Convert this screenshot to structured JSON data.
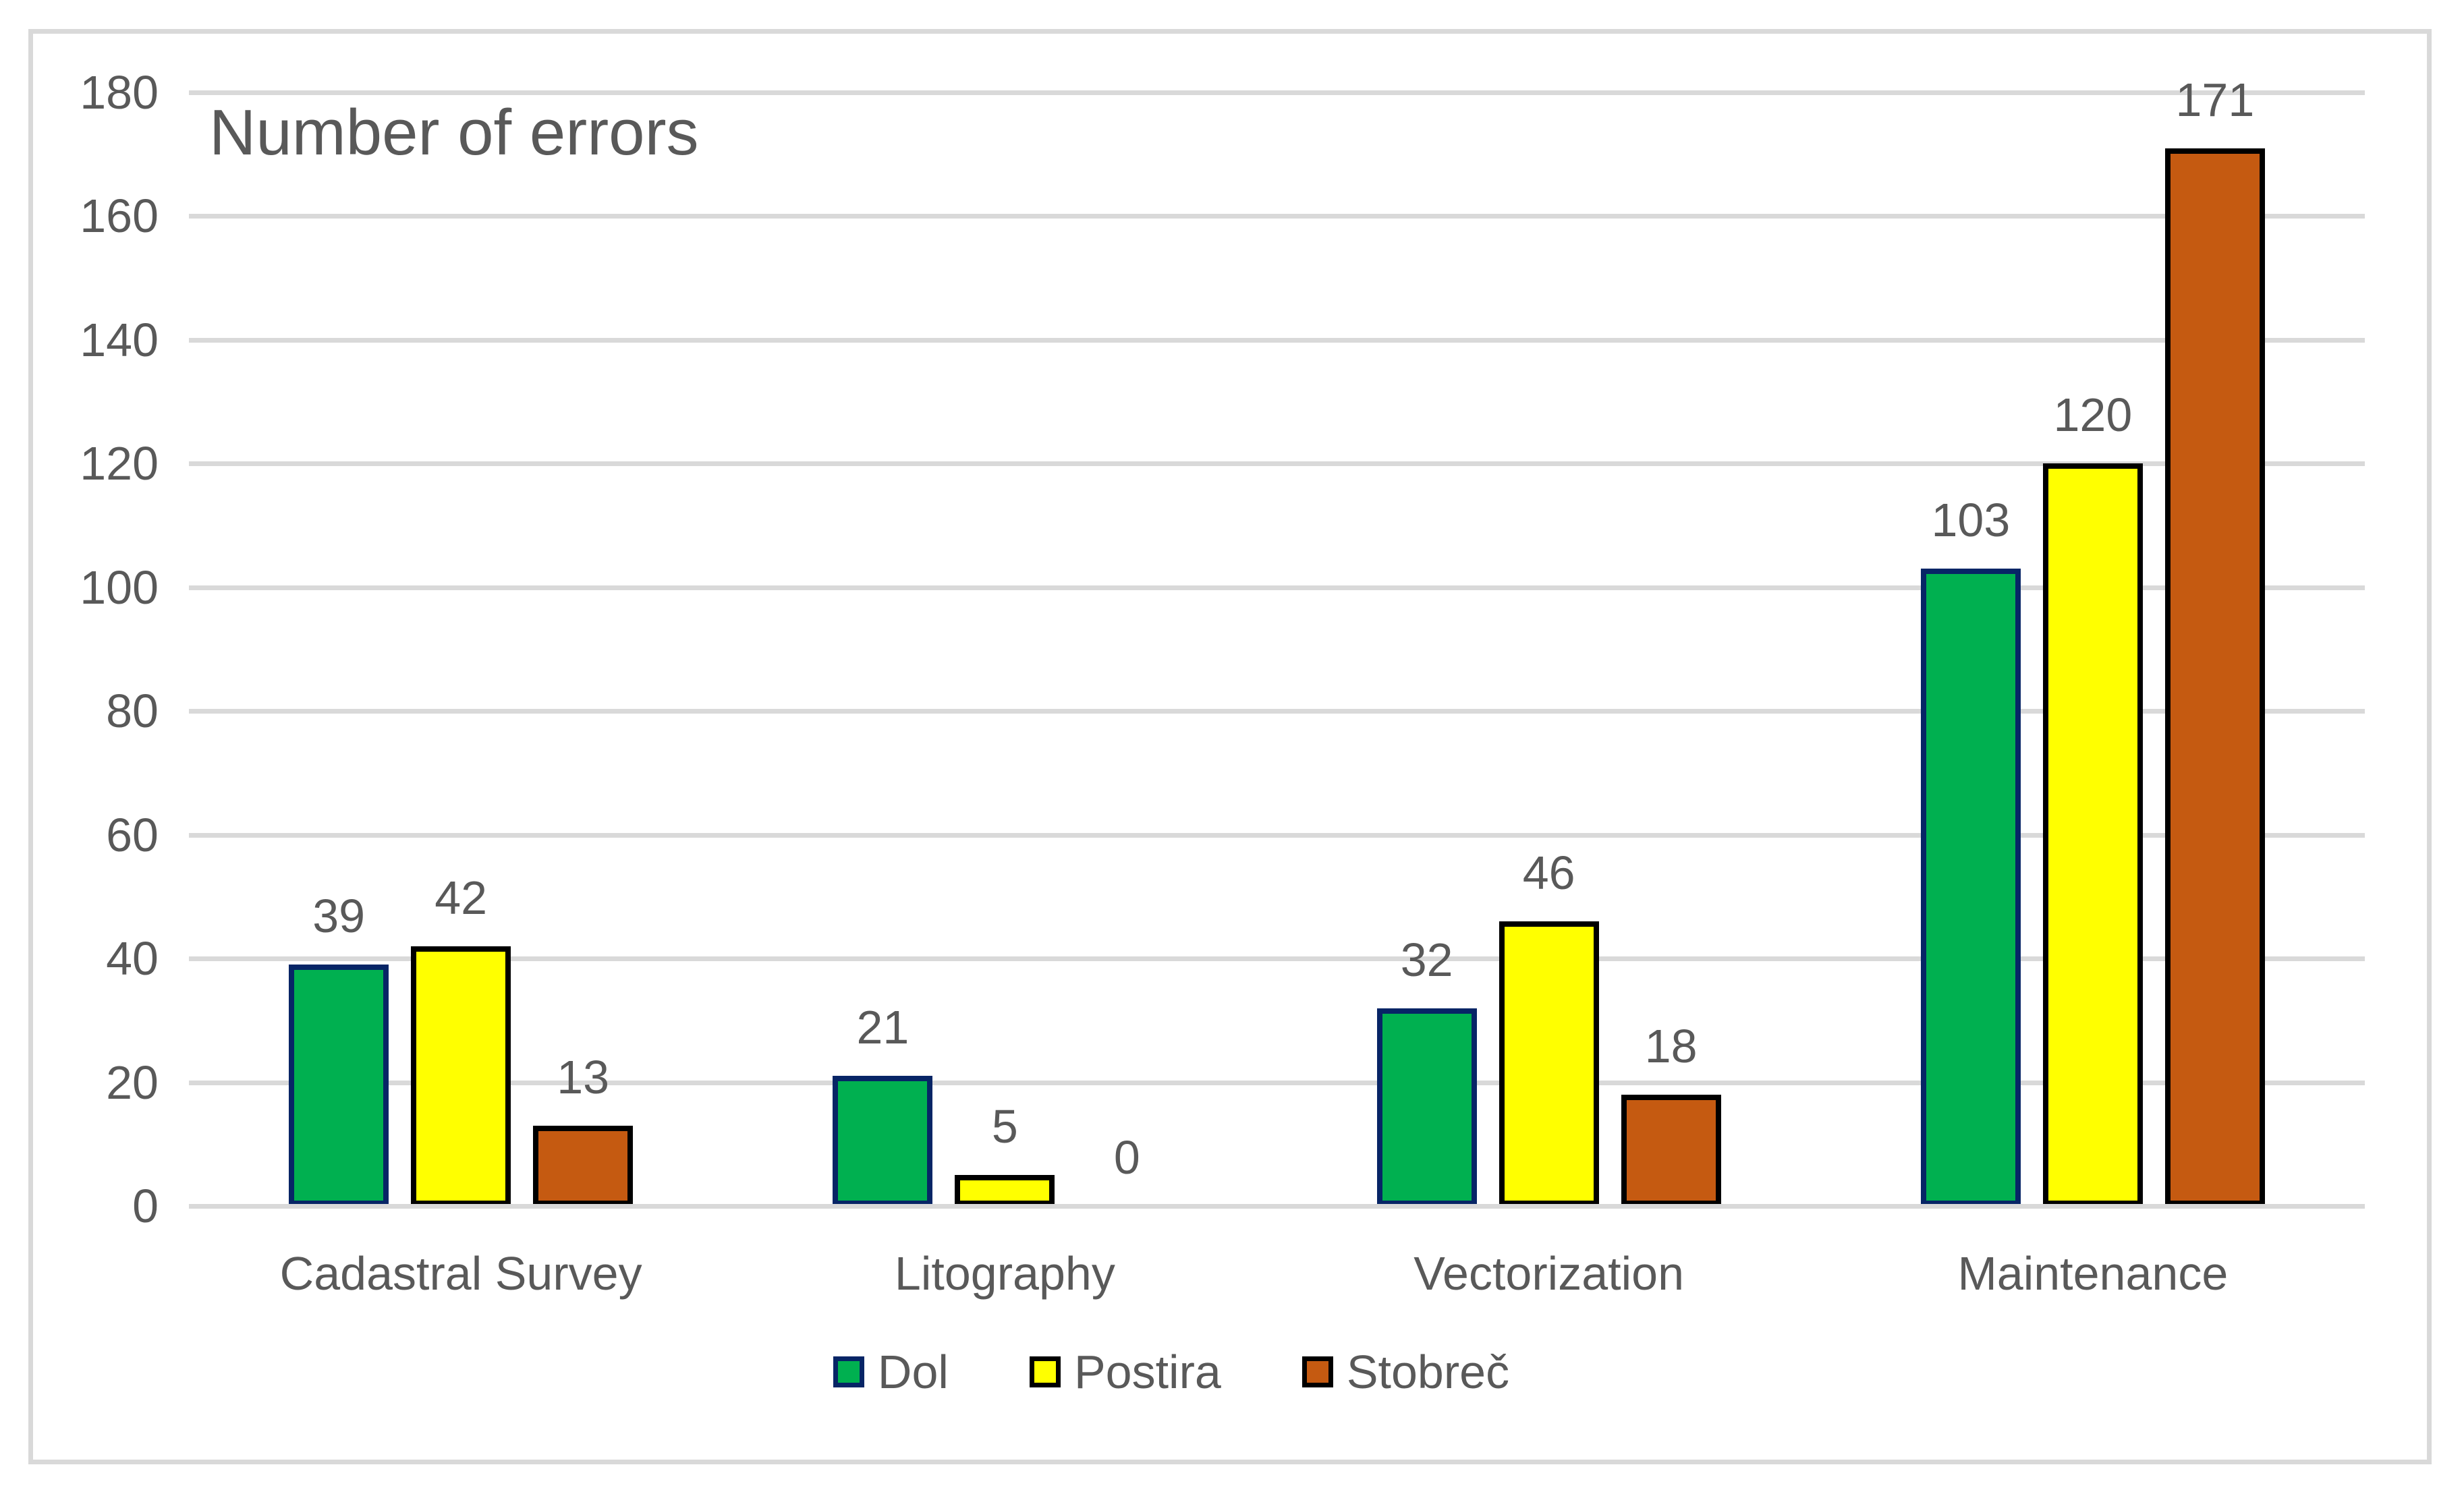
{
  "chart_data": {
    "type": "bar",
    "title": "Number of errors",
    "categories": [
      "Cadastral Survey",
      "Litography",
      "Vectorization",
      "Maintenance"
    ],
    "series": [
      {
        "name": "Dol",
        "values": [
          39,
          21,
          32,
          103
        ],
        "fill": "#00B050",
        "border": "#072566"
      },
      {
        "name": "Postira",
        "values": [
          42,
          5,
          46,
          120
        ],
        "fill": "#FFFF00",
        "border": "#000000"
      },
      {
        "name": "Stobreč",
        "values": [
          13,
          0,
          18,
          171
        ],
        "fill": "#C55A11",
        "border": "#000000"
      }
    ],
    "xlabel": "",
    "ylabel": "",
    "ylim": [
      0,
      180
    ],
    "yticks": [
      0,
      20,
      40,
      60,
      80,
      100,
      120,
      140,
      160,
      180
    ],
    "grid": true,
    "data_labels": true,
    "legend_position": "bottom",
    "colors": {
      "text": "#595959",
      "gridline": "#D9D9D9",
      "frame_border": "#D9D9D9",
      "background": "#FFFFFF"
    }
  }
}
